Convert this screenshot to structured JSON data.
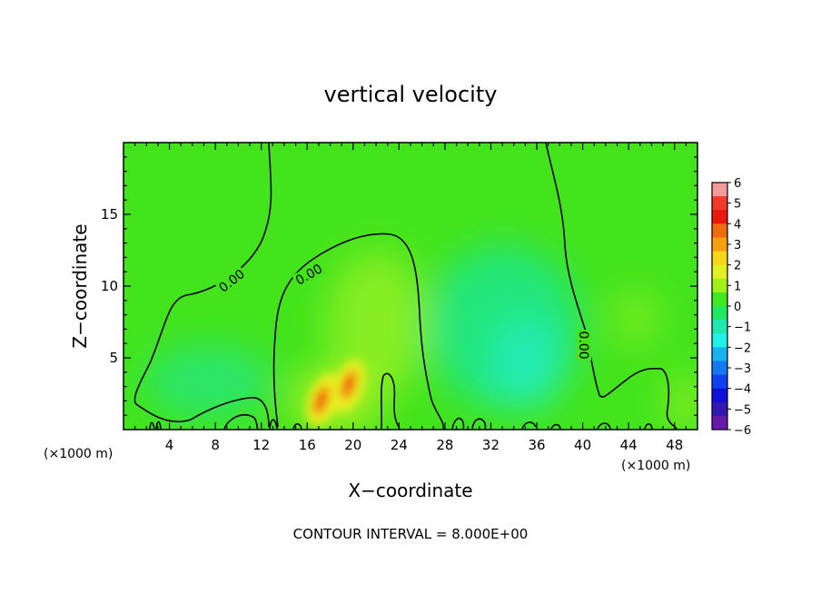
{
  "chart_data": {
    "type": "heatmap",
    "title": "vertical velocity",
    "xlabel": "X−coordinate",
    "ylabel": "Z−coordinate",
    "x_unit_left": "(×1000 m)",
    "x_unit_right": "(×1000 m)",
    "footer": "CONTOUR INTERVAL = 8.000E+00",
    "contour_label": "0.00",
    "xlim": [
      0,
      50
    ],
    "ylim": [
      0,
      20
    ],
    "x_ticks": [
      4,
      8,
      12,
      16,
      20,
      24,
      28,
      32,
      36,
      40,
      44,
      48
    ],
    "y_ticks": [
      5,
      10,
      15
    ],
    "colorbar": {
      "labels": [
        "6",
        "5",
        "4",
        "3",
        "2",
        "1",
        "0",
        "−1",
        "−2",
        "−3",
        "−4",
        "−5",
        "−6"
      ],
      "colors": [
        "#f59a9a",
        "#f23a2a",
        "#e8180c",
        "#f06a10",
        "#f5a010",
        "#f5d81a",
        "#e0f020",
        "#a0f018",
        "#40e820",
        "#20e860",
        "#20e8b0",
        "#20f0e8",
        "#18b4f0",
        "#1478f0",
        "#1040f0",
        "#1010d8",
        "#3018b0",
        "#6818a8"
      ]
    },
    "features": [
      {
        "name": "updraft",
        "x": 17.2,
        "z": 2.2,
        "value": 4.0
      },
      {
        "name": "updraft",
        "x": 19.6,
        "z": 3.0,
        "value": 4.0
      },
      {
        "name": "weak updraft",
        "x": 22.4,
        "z": 7.5,
        "value": 1.0
      },
      {
        "name": "weak updraft",
        "x": 45.5,
        "z": 7.8,
        "value": 0.6
      },
      {
        "name": "downdraft",
        "x": 33.5,
        "z": 5.0,
        "value": -1.5
      },
      {
        "name": "downdraft",
        "x": 8.0,
        "z": 4.0,
        "value": -0.8
      }
    ]
  }
}
